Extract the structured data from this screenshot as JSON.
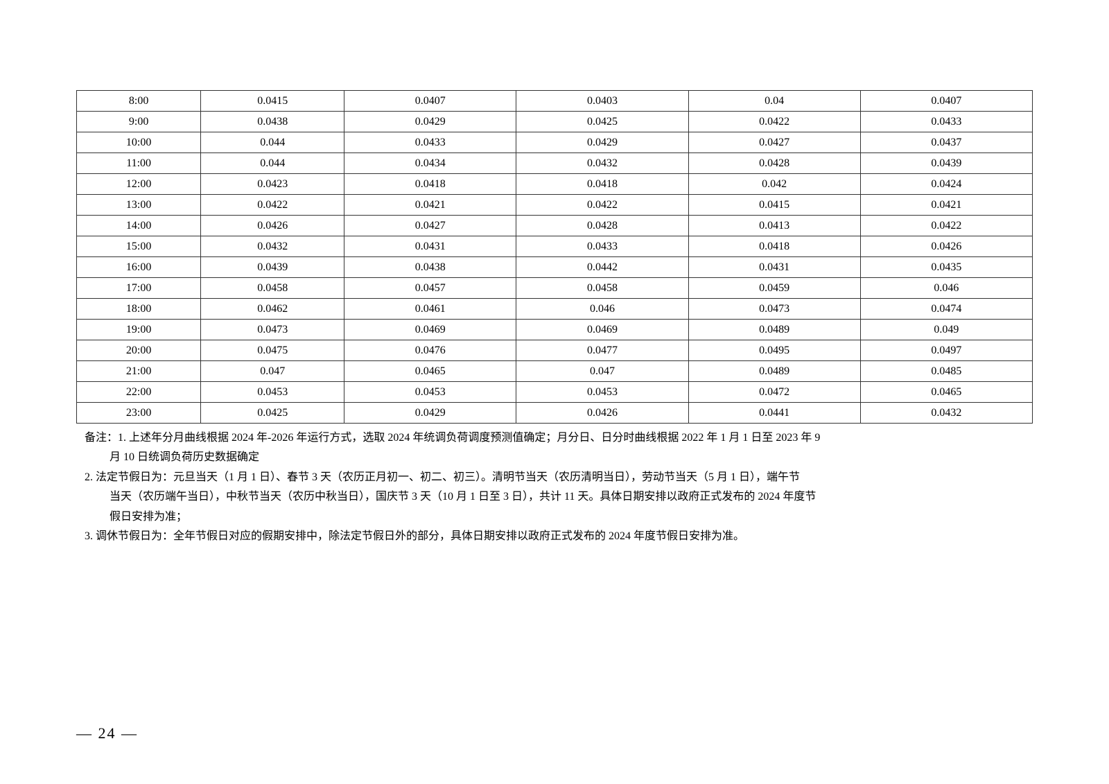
{
  "table": {
    "col_widths": [
      "13%",
      "15%",
      "18%",
      "18%",
      "18%",
      "18%"
    ],
    "rows": [
      [
        "8:00",
        "0.0415",
        "0.0407",
        "0.0403",
        "0.04",
        "0.0407"
      ],
      [
        "9:00",
        "0.0438",
        "0.0429",
        "0.0425",
        "0.0422",
        "0.0433"
      ],
      [
        "10:00",
        "0.044",
        "0.0433",
        "0.0429",
        "0.0427",
        "0.0437"
      ],
      [
        "11:00",
        "0.044",
        "0.0434",
        "0.0432",
        "0.0428",
        "0.0439"
      ],
      [
        "12:00",
        "0.0423",
        "0.0418",
        "0.0418",
        "0.042",
        "0.0424"
      ],
      [
        "13:00",
        "0.0422",
        "0.0421",
        "0.0422",
        "0.0415",
        "0.0421"
      ],
      [
        "14:00",
        "0.0426",
        "0.0427",
        "0.0428",
        "0.0413",
        "0.0422"
      ],
      [
        "15:00",
        "0.0432",
        "0.0431",
        "0.0433",
        "0.0418",
        "0.0426"
      ],
      [
        "16:00",
        "0.0439",
        "0.0438",
        "0.0442",
        "0.0431",
        "0.0435"
      ],
      [
        "17:00",
        "0.0458",
        "0.0457",
        "0.0458",
        "0.0459",
        "0.046"
      ],
      [
        "18:00",
        "0.0462",
        "0.0461",
        "0.046",
        "0.0473",
        "0.0474"
      ],
      [
        "19:00",
        "0.0473",
        "0.0469",
        "0.0469",
        "0.0489",
        "0.049"
      ],
      [
        "20:00",
        "0.0475",
        "0.0476",
        "0.0477",
        "0.0495",
        "0.0497"
      ],
      [
        "21:00",
        "0.047",
        "0.0465",
        "0.047",
        "0.0489",
        "0.0485"
      ],
      [
        "22:00",
        "0.0453",
        "0.0453",
        "0.0453",
        "0.0472",
        "0.0465"
      ],
      [
        "23:00",
        "0.0425",
        "0.0429",
        "0.0426",
        "0.0441",
        "0.0432"
      ]
    ]
  },
  "notes": {
    "n1a": "备注：1. 上述年分月曲线根据 2024 年-2026 年运行方式，选取 2024 年统调负荷调度预测值确定；月分日、日分时曲线根据 2022 年 1 月 1 日至 2023 年 9",
    "n1b": "月 10 日统调负荷历史数据确定",
    "n2a": "2. 法定节假日为：元旦当天（1 月 1 日）、春节 3 天（农历正月初一、初二、初三）。清明节当天（农历清明当日），劳动节当天（5 月 1 日），端午节",
    "n2b": "当天（农历端午当日），中秋节当天（农历中秋当日），国庆节 3 天（10 月 1 日至 3 日），共计 11 天。具体日期安排以政府正式发布的 2024 年度节",
    "n2c": "假日安排为准；",
    "n3": "3. 调休节假日为：全年节假日对应的假期安排中，除法定节假日外的部分，具体日期安排以政府正式发布的 2024 年度节假日安排为准。"
  },
  "page_number": "— 24 —"
}
